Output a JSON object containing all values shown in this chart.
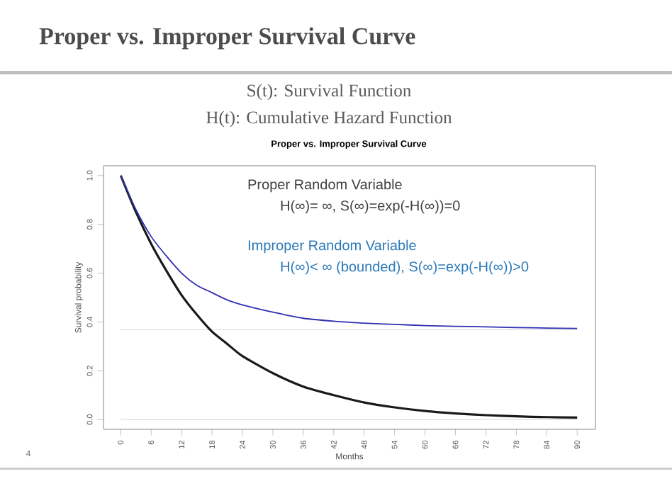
{
  "chart_data": {
    "type": "line",
    "title": "Proper vs. Improper Survival Curve",
    "subtitle": "Proper vs. Improper Survival Curve",
    "xlabel": "Months",
    "ylabel": "Survival probability",
    "annotations": [
      "S(t): Survival Function",
      "H(t): Cumulative Hazard Function",
      "Proper Random Variable",
      "H(∞)= ∞, S(∞)=exp(-H(∞))=0",
      "Improper Random Variable",
      "H(∞)< ∞ (bounded), S(∞)=exp(-H(∞))>0",
      "4"
    ],
    "x": [
      0,
      3,
      6,
      9,
      12,
      15,
      18,
      21,
      24,
      30,
      36,
      42,
      48,
      54,
      60,
      66,
      72,
      78,
      84,
      90
    ],
    "series": [
      {
        "color": "#1a1a1a",
        "values": [
          1.0,
          0.85,
          0.72,
          0.61,
          0.51,
          0.43,
          0.36,
          0.31,
          0.26,
          0.19,
          0.135,
          0.1,
          0.07,
          0.05,
          0.035,
          0.025,
          0.018,
          0.013,
          0.01,
          0.008
        ]
      },
      {
        "color": "#3030b0",
        "values": [
          1.0,
          0.86,
          0.75,
          0.67,
          0.6,
          0.55,
          0.52,
          0.49,
          0.47,
          0.44,
          0.415,
          0.403,
          0.395,
          0.39,
          0.385,
          0.382,
          0.38,
          0.377,
          0.375,
          0.373
        ]
      }
    ],
    "xlim": [
      -3.4,
      93.6
    ],
    "ylim": [
      -0.04,
      1.04
    ],
    "xticks": [
      0,
      6,
      12,
      18,
      24,
      30,
      36,
      42,
      48,
      54,
      60,
      66,
      72,
      78,
      84,
      90
    ],
    "yticks": [
      {
        "value": 0,
        "label": "0.0"
      },
      {
        "value": 0.2,
        "label": "0.2"
      },
      {
        "value": 0.4,
        "label": "0.4"
      },
      {
        "value": 0.6,
        "label": "0.6"
      },
      {
        "value": 0.8,
        "label": "0.8"
      },
      {
        "value": 1,
        "label": "1.0"
      }
    ],
    "ref_lines": [
      {
        "axis": "y",
        "value": 0.368,
        "color": "#cccccc"
      },
      {
        "axis": "y",
        "value": 0,
        "color": "#cccccc"
      }
    ],
    "grid": false,
    "marker": "none",
    "line_style": "solid"
  }
}
